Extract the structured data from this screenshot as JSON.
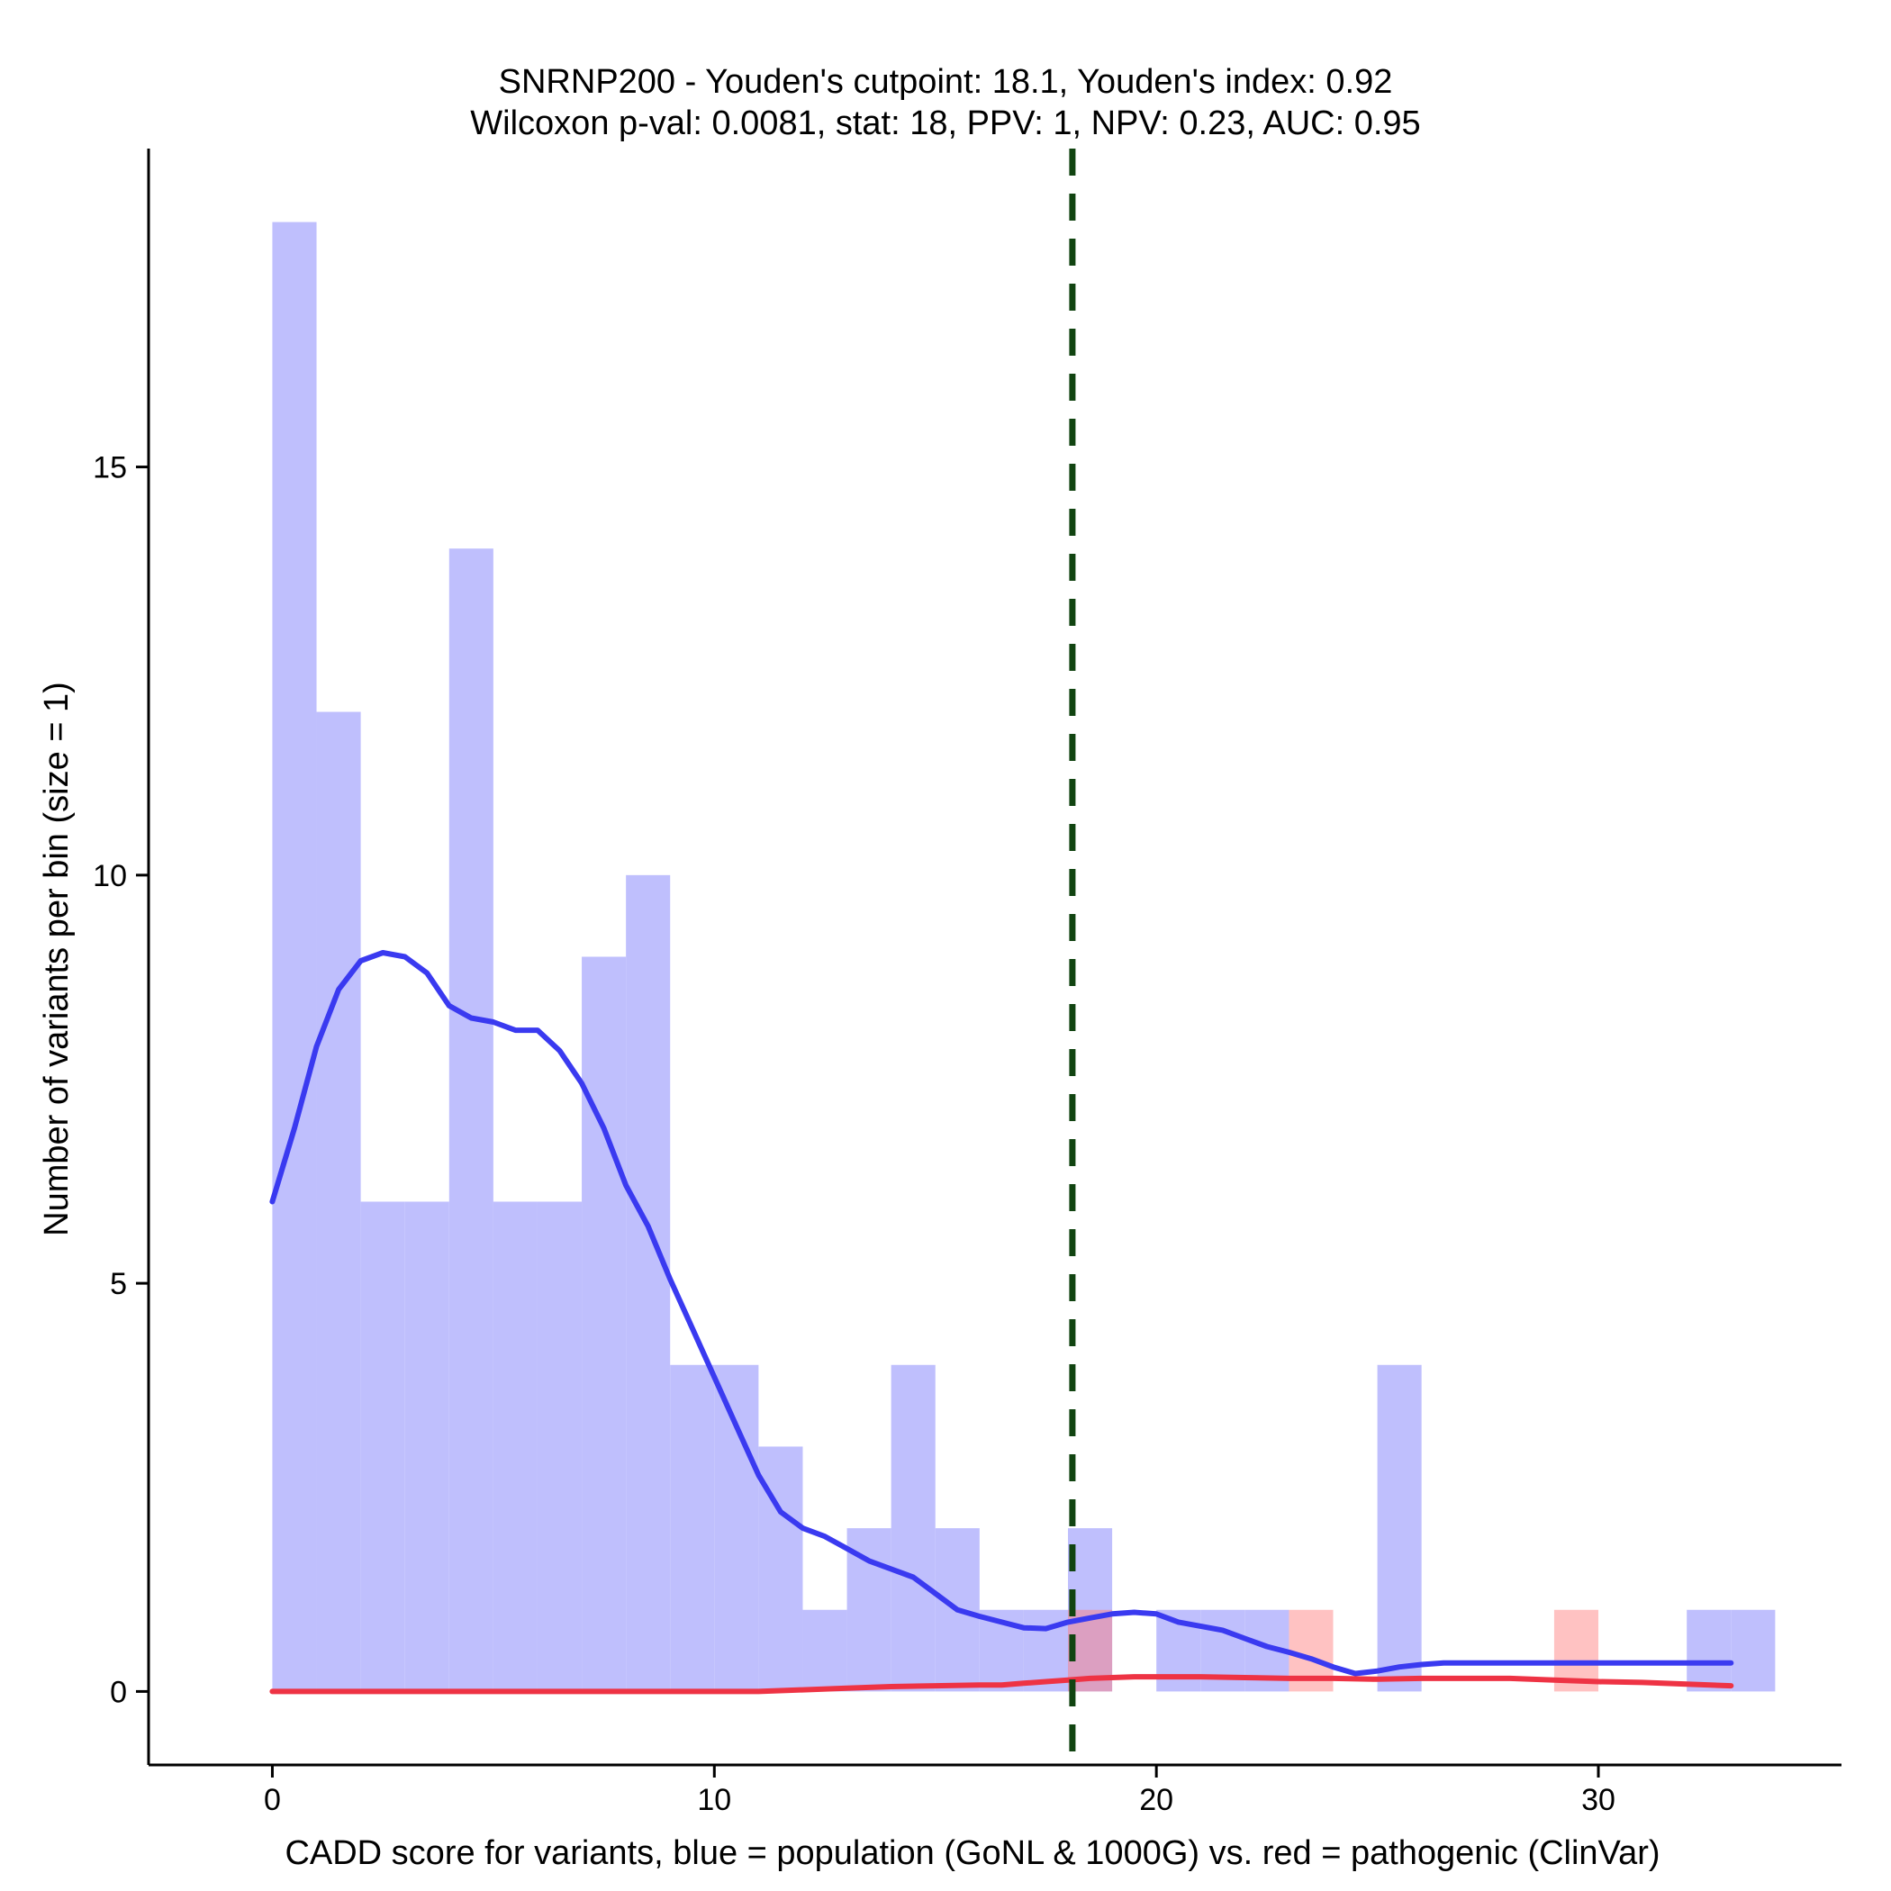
{
  "chart_data": {
    "type": "bar",
    "title_line1": "SNRNP200 - Youden's cutpoint: 18.1, Youden's index: 0.92",
    "title_line2": "Wilcoxon p-val: 0.0081, stat: 18, PPV: 1, NPV: 0.23, AUC: 0.95",
    "xlabel": "CADD score for variants, blue = population (GoNL & 1000G) vs. red = pathogenic (ClinVar)",
    "ylabel": "Number of variants per bin (size = 1)",
    "xlim": [
      -2.8,
      35.5
    ],
    "ylim": [
      -0.9,
      18.9
    ],
    "x_ticks": [
      0,
      10,
      20,
      30
    ],
    "y_ticks": [
      0,
      5,
      10,
      15
    ],
    "bin_width": 1,
    "cutpoint": 18.1,
    "colors": {
      "population_bar": "#bcbcfd",
      "pathogenic_bar": "#fdbcbc",
      "population_line": "#3a3af0",
      "pathogenic_line": "#ee3344",
      "cutpoint_line": "#114411"
    },
    "series": [
      {
        "name": "population (GoNL & 1000G)",
        "bin_starts": [
          0,
          1,
          2,
          3,
          4,
          5,
          6,
          7,
          8,
          9,
          10,
          11,
          12,
          13,
          14,
          15,
          16,
          17,
          18,
          20,
          21,
          22,
          25,
          32,
          33
        ],
        "values": [
          18,
          12,
          6,
          6,
          14,
          6,
          6,
          9,
          10,
          4,
          4,
          3,
          1,
          2,
          4,
          2,
          1,
          1,
          2,
          1,
          1,
          1,
          4,
          1,
          1
        ]
      },
      {
        "name": "pathogenic (ClinVar)",
        "bin_starts": [
          18,
          23,
          29
        ],
        "values": [
          1,
          1,
          1
        ]
      }
    ],
    "density_lines": [
      {
        "name": "population density",
        "x": [
          0,
          0.5,
          1,
          1.5,
          2,
          2.5,
          3,
          3.5,
          4,
          4.5,
          5,
          5.5,
          6,
          6.5,
          7,
          7.5,
          8,
          8.5,
          9,
          9.5,
          10,
          10.5,
          11,
          11.5,
          12,
          12.5,
          13,
          13.5,
          14,
          14.5,
          15,
          15.5,
          16,
          16.5,
          17,
          17.5,
          18,
          18.5,
          19,
          19.5,
          20,
          20.5,
          21,
          21.5,
          22,
          22.5,
          23,
          23.5,
          24,
          24.5,
          25,
          25.5,
          26,
          26.5,
          27,
          27.5,
          28,
          28.5,
          29,
          29.5,
          30,
          30.5,
          31,
          31.5,
          32,
          32.5,
          33
        ],
        "y": [
          6.0,
          6.9,
          7.9,
          8.6,
          8.95,
          9.05,
          9.0,
          8.8,
          8.4,
          8.25,
          8.2,
          8.1,
          8.1,
          7.85,
          7.45,
          6.9,
          6.2,
          5.7,
          5.05,
          4.45,
          3.85,
          3.25,
          2.65,
          2.2,
          2.0,
          1.9,
          1.75,
          1.6,
          1.5,
          1.4,
          1.2,
          1.0,
          0.92,
          0.85,
          0.78,
          0.77,
          0.85,
          0.9,
          0.95,
          0.97,
          0.95,
          0.85,
          0.8,
          0.75,
          0.65,
          0.55,
          0.48,
          0.4,
          0.3,
          0.22,
          0.25,
          0.3,
          0.33,
          0.35,
          0.35,
          0.35,
          0.35,
          0.35,
          0.35,
          0.35,
          0.35,
          0.35,
          0.35,
          0.35,
          0.35,
          0.35,
          0.35
        ]
      },
      {
        "name": "pathogenic density",
        "x": [
          0,
          3,
          6,
          9,
          11,
          12,
          13,
          14,
          15,
          16,
          16.5,
          17,
          17.5,
          18,
          18.5,
          19,
          19.5,
          20,
          21,
          22,
          23,
          24,
          25,
          26,
          27,
          28,
          29,
          30,
          31,
          32,
          33
        ],
        "y": [
          0,
          0,
          0,
          0,
          0,
          0.02,
          0.04,
          0.06,
          0.07,
          0.08,
          0.08,
          0.1,
          0.12,
          0.14,
          0.16,
          0.17,
          0.18,
          0.18,
          0.18,
          0.17,
          0.16,
          0.16,
          0.15,
          0.16,
          0.16,
          0.16,
          0.14,
          0.12,
          0.11,
          0.09,
          0.07
        ]
      }
    ]
  }
}
